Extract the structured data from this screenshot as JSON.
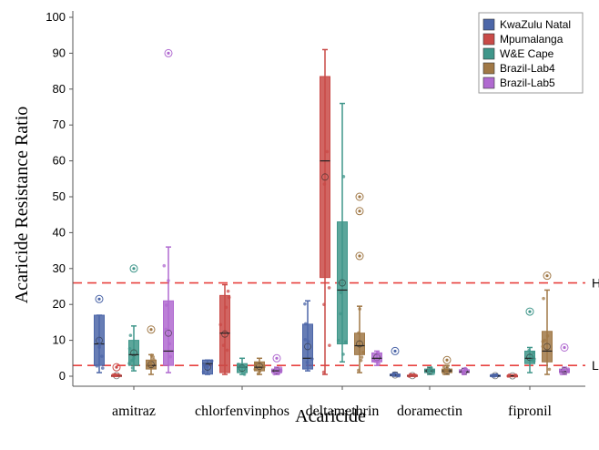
{
  "chart_data": {
    "type": "box",
    "xlabel": "Acaricide",
    "ylabel": "Acaricide Resistance Ratio",
    "ylim": [
      -2,
      102
    ],
    "yticks": [
      0,
      10,
      20,
      30,
      40,
      50,
      60,
      70,
      80,
      90,
      100
    ],
    "categories": [
      "amitraz",
      "chlorfenvinphos",
      "deltamethrin",
      "doramectin",
      "fipronil"
    ],
    "legend_position": "top-right",
    "reference_lines": [
      {
        "y": 26,
        "color": "#e8413f",
        "label": "H"
      },
      {
        "y": 3,
        "color": "#e8413f",
        "label": "L"
      }
    ],
    "series": [
      {
        "name": "KwaZulu Natal",
        "color": "#4c66a8",
        "boxes": [
          {
            "category": "amitraz",
            "whisker_low": 1,
            "q1": 3,
            "median": 9,
            "q3": 17,
            "whisker_high": 17,
            "outliers": [
              21.5
            ]
          },
          {
            "category": "chlorfenvinphos",
            "whisker_low": 0.5,
            "q1": 0.6,
            "median": 3.5,
            "q3": 4.5,
            "whisker_high": 4.5,
            "outliers": []
          },
          {
            "category": "deltamethrin",
            "whisker_low": 1.5,
            "q1": 2,
            "median": 5,
            "q3": 14.5,
            "whisker_high": 21,
            "outliers": []
          },
          {
            "category": "doramectin",
            "whisker_low": 0,
            "q1": 0.1,
            "median": 0.3,
            "q3": 0.6,
            "whisker_high": 1,
            "outliers": [
              7
            ]
          },
          {
            "category": "fipronil",
            "whisker_low": 0,
            "q1": 0,
            "median": 0.1,
            "q3": 0.3,
            "whisker_high": 0.5,
            "outliers": []
          }
        ]
      },
      {
        "name": "Mpumalanga",
        "color": "#c94a47",
        "boxes": [
          {
            "category": "amitraz",
            "whisker_low": 0,
            "q1": 0,
            "median": 0.1,
            "q3": 0.3,
            "whisker_high": 0.5,
            "outliers": [
              2.5
            ]
          },
          {
            "category": "chlorfenvinphos",
            "whisker_low": 0.5,
            "q1": 1,
            "median": 12,
            "q3": 22.5,
            "whisker_high": 25.5,
            "outliers": []
          },
          {
            "category": "deltamethrin",
            "whisker_low": 0.5,
            "q1": 27.5,
            "median": 60,
            "q3": 83.5,
            "whisker_high": 91,
            "outliers": []
          },
          {
            "category": "doramectin",
            "whisker_low": 0,
            "q1": 0,
            "median": 0.1,
            "q3": 0.3,
            "whisker_high": 0.5,
            "outliers": []
          },
          {
            "category": "fipronil",
            "whisker_low": 0,
            "q1": 0,
            "median": 0.1,
            "q3": 0.2,
            "whisker_high": 0.4,
            "outliers": []
          }
        ]
      },
      {
        "name": "W&E Cape",
        "color": "#3f968a",
        "boxes": [
          {
            "category": "amitraz",
            "whisker_low": 1.5,
            "q1": 3,
            "median": 6,
            "q3": 10,
            "whisker_high": 14,
            "outliers": [
              30
            ]
          },
          {
            "category": "chlorfenvinphos",
            "whisker_low": 0.5,
            "q1": 1,
            "median": 2.5,
            "q3": 3.5,
            "whisker_high": 5,
            "outliers": []
          },
          {
            "category": "deltamethrin",
            "whisker_low": 4,
            "q1": 9,
            "median": 24,
            "q3": 43,
            "whisker_high": 76,
            "outliers": []
          },
          {
            "category": "doramectin",
            "whisker_low": 0.5,
            "q1": 1,
            "median": 1.5,
            "q3": 2,
            "whisker_high": 2.5,
            "outliers": []
          },
          {
            "category": "fipronil",
            "whisker_low": 1,
            "q1": 3.5,
            "median": 5,
            "q3": 7,
            "whisker_high": 8,
            "outliers": [
              18
            ]
          }
        ]
      },
      {
        "name": "Brazil-Lab4",
        "color": "#a07846",
        "boxes": [
          {
            "category": "amitraz",
            "whisker_low": 0.5,
            "q1": 2,
            "median": 3,
            "q3": 4.5,
            "whisker_high": 6,
            "outliers": [
              13
            ]
          },
          {
            "category": "chlorfenvinphos",
            "whisker_low": 0.5,
            "q1": 1.5,
            "median": 2.5,
            "q3": 4,
            "whisker_high": 5,
            "outliers": []
          },
          {
            "category": "deltamethrin",
            "whisker_low": 1,
            "q1": 6,
            "median": 8.5,
            "q3": 12,
            "whisker_high": 19.5,
            "outliers": [
              33.5,
              46,
              50
            ]
          },
          {
            "category": "doramectin",
            "whisker_low": 0.5,
            "q1": 1,
            "median": 1.5,
            "q3": 2,
            "whisker_high": 3,
            "outliers": [
              4.5
            ]
          },
          {
            "category": "fipronil",
            "whisker_low": 0.5,
            "q1": 4,
            "median": 7,
            "q3": 12.5,
            "whisker_high": 24,
            "outliers": [
              28
            ]
          }
        ]
      },
      {
        "name": "Brazil-Lab5",
        "color": "#b06ad0",
        "boxes": [
          {
            "category": "amitraz",
            "whisker_low": 1,
            "q1": 3,
            "median": 7,
            "q3": 21,
            "whisker_high": 36,
            "outliers": [
              90
            ]
          },
          {
            "category": "chlorfenvinphos",
            "whisker_low": 0.5,
            "q1": 1,
            "median": 1.5,
            "q3": 2,
            "whisker_high": 2.5,
            "outliers": [
              5
            ]
          },
          {
            "category": "deltamethrin",
            "whisker_low": 3,
            "q1": 4,
            "median": 5,
            "q3": 6.5,
            "whisker_high": 7,
            "outliers": []
          },
          {
            "category": "doramectin",
            "whisker_low": 0.5,
            "q1": 1,
            "median": 1.2,
            "q3": 1.8,
            "whisker_high": 2.2,
            "outliers": []
          },
          {
            "category": "fipronil",
            "whisker_low": 0.5,
            "q1": 1,
            "median": 1.3,
            "q3": 2,
            "whisker_high": 2.5,
            "outliers": [
              8
            ]
          }
        ]
      }
    ]
  }
}
